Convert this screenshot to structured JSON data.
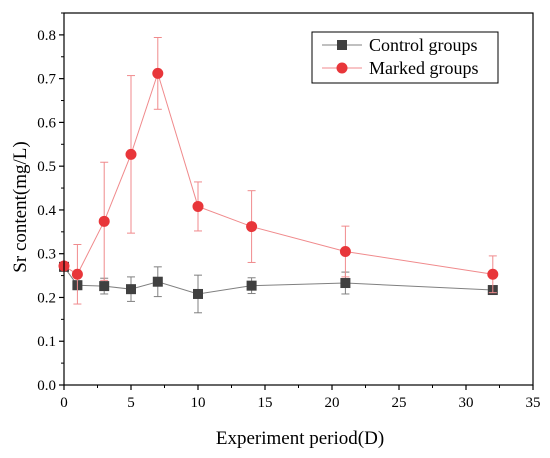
{
  "chart_data": {
    "type": "line",
    "xlabel": "Experiment period(D)",
    "ylabel": "Sr content(mg/L)",
    "xlim": [
      0,
      35
    ],
    "ylim": [
      0,
      0.85
    ],
    "x_ticks": [
      "0",
      "5",
      "10",
      "15",
      "20",
      "25",
      "30",
      "35"
    ],
    "y_ticks": [
      "0.0",
      "0.1",
      "0.2",
      "0.3",
      "0.4",
      "0.5",
      "0.6",
      "0.7",
      "0.8"
    ],
    "grid": false,
    "legend_position": "top-right",
    "series": [
      {
        "name": "Control groups",
        "marker": "square",
        "color": "#404040",
        "line_color": "#808080",
        "x": [
          0,
          1,
          3,
          5,
          7,
          10,
          14,
          21,
          32
        ],
        "y": [
          0.27,
          0.228,
          0.226,
          0.219,
          0.236,
          0.208,
          0.227,
          0.233,
          0.217
        ],
        "err": [
          0.0,
          0.01,
          0.018,
          0.028,
          0.034,
          0.043,
          0.018,
          0.025,
          0.008
        ]
      },
      {
        "name": "Marked groups",
        "marker": "circle",
        "color": "#e8363a",
        "line_color": "#f08a8c",
        "x": [
          0,
          1,
          3,
          5,
          7,
          10,
          14,
          21,
          32
        ],
        "y": [
          0.272,
          0.253,
          0.374,
          0.527,
          0.712,
          0.408,
          0.362,
          0.305,
          0.253
        ],
        "err": [
          0.0,
          0.068,
          0.135,
          0.18,
          0.082,
          0.056,
          0.082,
          0.058,
          0.042
        ]
      }
    ]
  }
}
